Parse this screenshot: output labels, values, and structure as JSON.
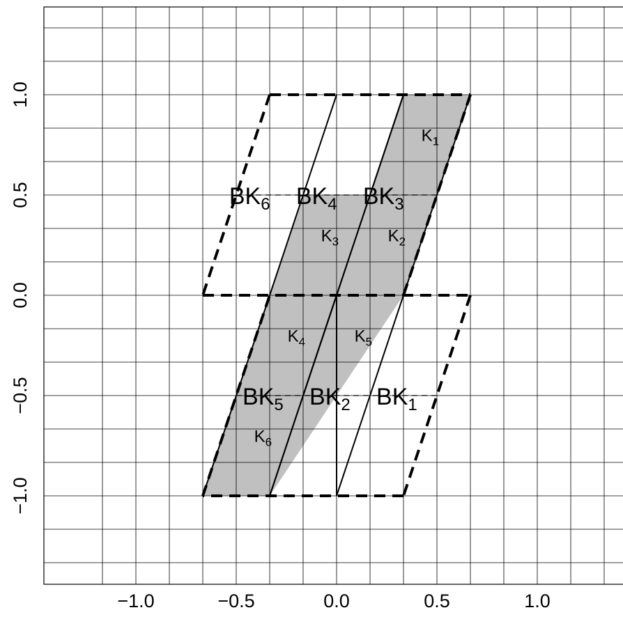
{
  "chart_data": {
    "type": "scatter",
    "title": "",
    "xlabel": "",
    "ylabel": "",
    "xlim": [
      -1.45,
      1.42
    ],
    "ylim": [
      -1.44,
      1.43
    ],
    "x_ticks": [
      -1.0,
      -0.5,
      0.0,
      0.5,
      1.0
    ],
    "y_ticks": [
      -1.0,
      -0.5,
      0.0,
      0.5,
      1.0
    ],
    "x_tick_labels": [
      "−1.0",
      "−0.5",
      "0.0",
      "0.5",
      "1.0"
    ],
    "y_tick_labels": [
      "−1.0",
      "−0.5",
      "0.0",
      "0.5",
      "1.0"
    ],
    "grid": true,
    "grid_x": [
      -1.1667,
      -1.0,
      -0.8333,
      -0.6667,
      -0.5,
      -0.3333,
      -0.1667,
      0.0,
      0.1667,
      0.3333,
      0.5,
      0.6667,
      0.8333,
      1.0,
      1.1667,
      1.3333
    ],
    "grid_y": [
      -1.3333,
      -1.1667,
      -1.0,
      -0.8333,
      -0.6667,
      -0.5,
      -0.3333,
      -0.1667,
      0.0,
      0.1667,
      0.3333,
      0.5,
      0.6667,
      0.8333,
      1.0,
      1.1667,
      1.3333
    ],
    "axis_lines": {
      "x0": true,
      "y0": true
    },
    "shaded_regions": [
      {
        "name": "",
        "polygon": [
          [
            0.3333,
            1.0
          ],
          [
            0.6667,
            1.0
          ],
          [
            0.3333,
            0.0
          ],
          [
            0.0,
            0.0
          ],
          [
            -0.1667,
            -0.5
          ],
          [
            -0.3333,
            -1.0
          ],
          [
            -0.6667,
            -1.0
          ],
          [
            -0.3333,
            0.0
          ],
          [
            0.0,
            1.0
          ],
          [
            0.0,
            0.0
          ],
          [
            0.3333,
            1.0
          ]
        ]
      }
    ],
    "shaded_polygons": [
      [
        [
          0.3333,
          1.0
        ],
        [
          0.6667,
          1.0
        ],
        [
          0.3333,
          0.0
        ],
        [
          0.0,
          0.0
        ]
      ],
      [
        [
          -0.3333,
          0.0
        ],
        [
          -0.1667,
          0.5
        ],
        [
          0.0,
          0.5
        ],
        [
          0.0,
          0.0
        ]
      ],
      [
        [
          0.0,
          0.0
        ],
        [
          0.3333,
          0.0
        ],
        [
          -0.3333,
          -1.0
        ],
        [
          -0.6667,
          -1.0
        ]
      ],
      [
        [
          -0.1667,
          0.5
        ],
        [
          0.0,
          0.5
        ],
        [
          0.1667,
          0.5
        ],
        [
          0.0,
          0.0
        ]
      ]
    ],
    "shade_polys": [
      [
        [
          0.3333,
          1.0
        ],
        [
          0.6667,
          1.0
        ],
        [
          0.3333,
          0.0
        ],
        [
          0.0,
          0.0
        ]
      ],
      [
        [
          -0.1667,
          0.5
        ],
        [
          0.1667,
          0.5
        ],
        [
          0.0,
          0.0
        ],
        [
          -0.3333,
          0.0
        ]
      ],
      [
        [
          -0.3333,
          0.0
        ],
        [
          0.3333,
          0.0
        ],
        [
          -0.3333,
          -1.0
        ],
        [
          -0.6667,
          -1.0
        ]
      ]
    ],
    "solid_lines": [
      [
        [
          -0.3333,
          -1.0
        ],
        [
          0.0,
          0.0
        ],
        [
          0.3333,
          1.0
        ]
      ],
      [
        [
          0.0,
          -1.0
        ],
        [
          0.0,
          0.0
        ]
      ],
      [
        [
          0.0,
          -1.0
        ],
        [
          0.3333,
          0.0
        ]
      ],
      [
        [
          -0.3333,
          0.0
        ],
        [
          0.0,
          1.0
        ]
      ],
      [
        [
          -0.6667,
          -1.0
        ],
        [
          -0.3333,
          0.0
        ]
      ],
      [
        [
          0.3333,
          0.0
        ],
        [
          0.6667,
          1.0
        ]
      ],
      [
        [
          -0.3333,
          -1.0
        ],
        [
          0.0,
          0.0
        ]
      ],
      [
        [
          0.0,
          0.0
        ],
        [
          0.3333,
          1.0
        ]
      ],
      [
        [
          -0.1667,
          -0.5
        ],
        [
          0.0,
          0.0
        ]
      ]
    ],
    "dashed_lines": [
      [
        [
          -0.3333,
          1.0
        ],
        [
          0.6667,
          1.0
        ]
      ],
      [
        [
          -0.3333,
          1.0
        ],
        [
          -0.6667,
          0.0
        ]
      ],
      [
        [
          -0.6667,
          0.0
        ],
        [
          0.6667,
          0.0
        ]
      ],
      [
        [
          0.6667,
          0.0
        ],
        [
          0.3333,
          -1.0
        ]
      ],
      [
        [
          0.3333,
          -1.0
        ],
        [
          -0.6667,
          -1.0
        ]
      ],
      [
        [
          -0.6667,
          -1.0
        ],
        [
          -0.3333,
          0.0
        ]
      ],
      [
        [
          0.6667,
          1.0
        ],
        [
          0.3333,
          0.0
        ]
      ],
      [
        [
          -0.5,
          0.5
        ],
        [
          0.5,
          0.5
        ]
      ],
      [
        [
          -0.5,
          -0.5
        ],
        [
          0.5,
          -0.5
        ]
      ]
    ],
    "annotations": [
      {
        "text": "K",
        "sub": "1",
        "x": 0.4667,
        "y": 0.8,
        "size": "small"
      },
      {
        "text": "K",
        "sub": "2",
        "x": 0.3,
        "y": 0.3,
        "size": "small"
      },
      {
        "text": "K",
        "sub": "3",
        "x": -0.0333,
        "y": 0.3,
        "size": "small"
      },
      {
        "text": "K",
        "sub": "4",
        "x": -0.2,
        "y": -0.2,
        "size": "small"
      },
      {
        "text": "K",
        "sub": "5",
        "x": 0.1333,
        "y": -0.2,
        "size": "small"
      },
      {
        "text": "K",
        "sub": "6",
        "x": -0.3667,
        "y": -0.7,
        "size": "small"
      },
      {
        "text": "BK",
        "sub": "6",
        "x": -0.4333,
        "y": 0.5,
        "size": "large"
      },
      {
        "text": "BK",
        "sub": "4",
        "x": -0.1,
        "y": 0.5,
        "size": "large"
      },
      {
        "text": "BK",
        "sub": "3",
        "x": 0.2333,
        "y": 0.5,
        "size": "large"
      },
      {
        "text": "BK",
        "sub": "5",
        "x": -0.3667,
        "y": -0.5,
        "size": "large"
      },
      {
        "text": "BK",
        "sub": "2",
        "x": -0.0333,
        "y": -0.5,
        "size": "large"
      },
      {
        "text": "BK",
        "sub": "1",
        "x": 0.3,
        "y": -0.5,
        "size": "large"
      }
    ]
  },
  "colors": {
    "background": "#ffffff",
    "grid": "#000000",
    "shade": "#c0c0c0",
    "ink": "#000000"
  }
}
